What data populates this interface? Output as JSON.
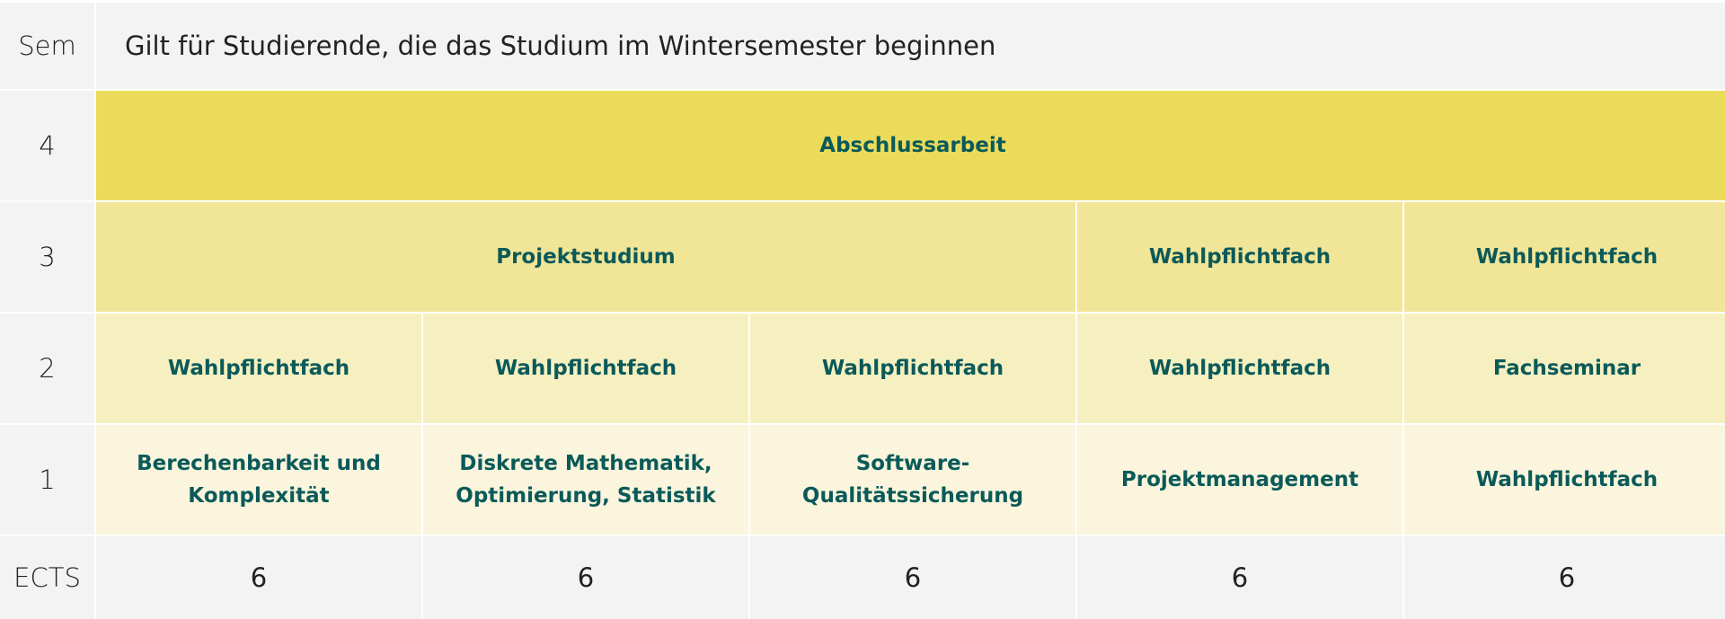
{
  "header": {
    "sem_label": "Sem",
    "title": "Gilt für Studierende, die das Studium im Wintersemester beginnen"
  },
  "rows": {
    "sem4": {
      "label": "4",
      "modules": [
        "Abschlussarbeit"
      ]
    },
    "sem3": {
      "label": "3",
      "modules": [
        "Projektstudium",
        "Wahlpflichtfach",
        "Wahlpflichtfach"
      ]
    },
    "sem2": {
      "label": "2",
      "modules": [
        "Wahlpflichtfach",
        "Wahlpflichtfach",
        "Wahlpflichtfach",
        "Wahlpflichtfach",
        "Fachseminar"
      ]
    },
    "sem1": {
      "label": "1",
      "modules": [
        [
          "Berechenbarkeit und",
          "Komplexität"
        ],
        [
          "Diskrete Mathematik,",
          "Optimierung, Statistik"
        ],
        [
          "Software-",
          "Qualitätssicherung"
        ],
        [
          "Projektmanagement"
        ],
        [
          "Wahlpflichtfach"
        ]
      ]
    }
  },
  "ects": {
    "label": "ECTS",
    "values": [
      "6",
      "6",
      "6",
      "6",
      "6"
    ]
  },
  "colors": {
    "semester4": "#ebdb5a",
    "semester3": "#f1e597",
    "semester2": "#f6f0c1",
    "semester1": "#faf5dc",
    "neutral": "#f3f3f3",
    "module_text": "#0b5a5a"
  }
}
